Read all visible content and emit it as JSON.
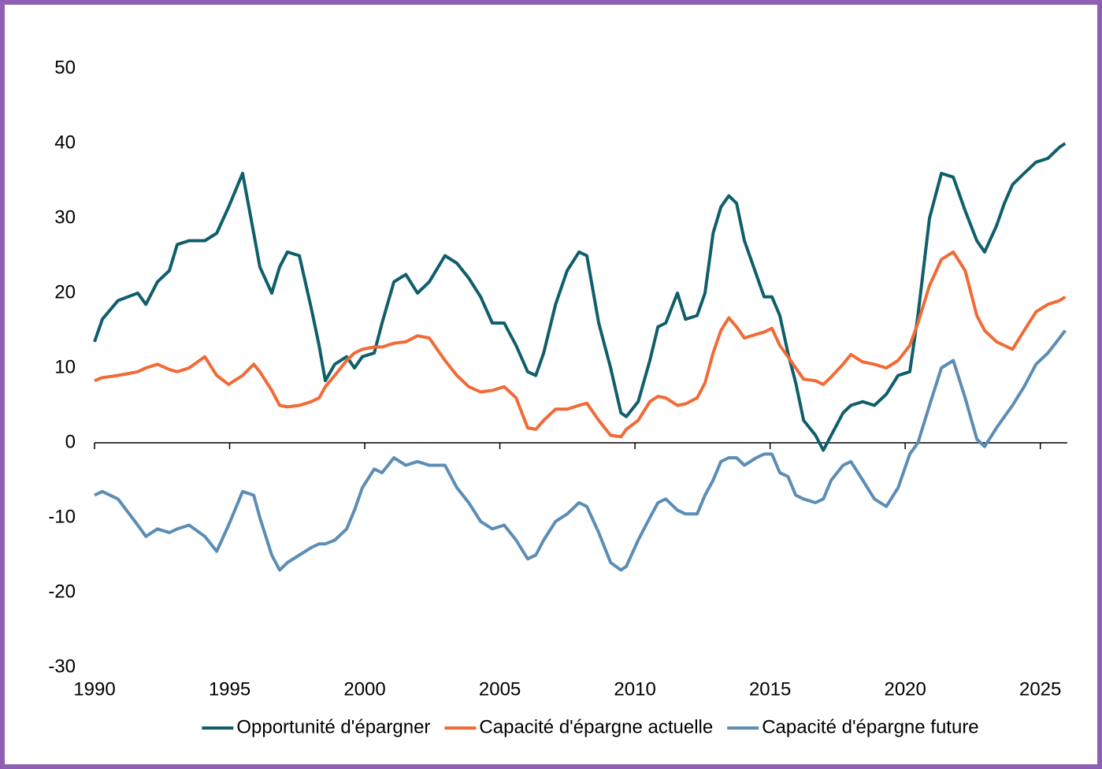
{
  "chart_data": {
    "type": "line",
    "x": [
      1990.0,
      1990.29,
      1990.87,
      1991.6,
      1991.9,
      1992.33,
      1992.77,
      1993.06,
      1993.5,
      1994.08,
      1994.52,
      1994.96,
      1995.48,
      1995.89,
      1996.12,
      1996.56,
      1996.85,
      1997.14,
      1997.58,
      1998.02,
      1998.31,
      1998.54,
      1998.89,
      1999.33,
      1999.62,
      1999.91,
      2000.35,
      2000.64,
      2001.08,
      2001.52,
      2001.95,
      2002.39,
      2002.97,
      2003.41,
      2003.85,
      2004.29,
      2004.72,
      2005.16,
      2005.6,
      2006.03,
      2006.33,
      2006.62,
      2007.06,
      2007.49,
      2007.93,
      2008.22,
      2008.66,
      2009.1,
      2009.48,
      2009.68,
      2010.12,
      2010.55,
      2010.85,
      2011.14,
      2011.57,
      2011.87,
      2012.3,
      2012.59,
      2012.89,
      2013.18,
      2013.47,
      2013.76,
      2014.05,
      2014.49,
      2014.78,
      2015.07,
      2015.36,
      2015.66,
      2015.95,
      2016.24,
      2016.68,
      2016.97,
      2017.26,
      2017.7,
      2017.99,
      2018.43,
      2018.86,
      2019.3,
      2019.74,
      2020.17,
      2020.47,
      2020.9,
      2021.34,
      2021.78,
      2022.22,
      2022.65,
      2022.94,
      2023.38,
      2023.67,
      2023.97,
      2024.4,
      2024.84,
      2025.28,
      2025.71,
      2025.92
    ],
    "series": [
      {
        "name": "Opportunité d'épargner",
        "color": "#0f5f6b",
        "values": [
          13.5,
          16.5,
          19,
          20,
          18.5,
          21.5,
          23,
          26.5,
          27,
          27,
          28,
          31.5,
          36,
          28,
          23.5,
          20,
          23.5,
          25.5,
          25,
          18,
          13,
          8.3,
          10.5,
          11.5,
          10,
          11.5,
          12,
          16,
          21.5,
          22.5,
          20,
          21.5,
          25,
          24,
          22,
          19.5,
          16,
          16,
          13,
          9.5,
          9,
          12,
          18.5,
          23,
          25.5,
          25,
          16,
          10,
          4,
          3.5,
          5.5,
          11,
          15.5,
          16,
          20,
          16.5,
          17,
          20,
          28,
          31.5,
          33,
          32,
          27,
          22.5,
          19.5,
          19.5,
          17,
          12,
          8,
          3,
          1,
          -1,
          1,
          4,
          5,
          5.5,
          5,
          6.5,
          9,
          9.5,
          17,
          30,
          36,
          35.5,
          31,
          27,
          25.5,
          29,
          32,
          34.5,
          36,
          37.5,
          38,
          39.5,
          40
        ]
      },
      {
        "name": "Capacité d'épargne actuelle",
        "color": "#f26a35",
        "values": [
          8.3,
          8.7,
          9,
          9.5,
          10,
          10.5,
          9.8,
          9.5,
          10,
          11.5,
          9,
          7.8,
          9,
          10.5,
          9.5,
          7,
          5,
          4.8,
          5,
          5.5,
          6,
          7.5,
          9,
          11,
          12,
          12.5,
          12.8,
          12.8,
          13.3,
          13.5,
          14.3,
          14,
          11,
          9,
          7.5,
          6.8,
          7,
          7.5,
          6,
          2,
          1.8,
          3,
          4.5,
          4.5,
          5,
          5.3,
          3,
          1,
          0.8,
          1.8,
          3,
          5.5,
          6.2,
          6,
          5,
          5.2,
          6,
          8,
          12,
          15,
          16.7,
          15.5,
          14,
          14.5,
          14.8,
          15.3,
          13,
          11.5,
          10,
          8.5,
          8.3,
          7.8,
          8.8,
          10.5,
          11.8,
          10.8,
          10.5,
          10,
          11,
          13,
          16,
          21,
          24.5,
          25.5,
          23,
          17,
          15,
          13.5,
          13,
          12.5,
          15,
          17.5,
          18.5,
          19,
          19.5
        ]
      },
      {
        "name": "Capacité d'épargne future",
        "color": "#5b8db5",
        "values": [
          -7,
          -6.5,
          -7.5,
          -11,
          -12.5,
          -11.5,
          -12,
          -11.5,
          -11,
          -12.5,
          -14.5,
          -11,
          -6.5,
          -7,
          -10,
          -15,
          -17,
          -16,
          -15,
          -14,
          -13.5,
          -13.5,
          -13,
          -11.5,
          -9,
          -6,
          -3.5,
          -4,
          -2,
          -3,
          -2.5,
          -3,
          -3,
          -6,
          -8,
          -10.5,
          -11.5,
          -11,
          -13,
          -15.5,
          -15,
          -13,
          -10.5,
          -9.5,
          -8,
          -8.5,
          -12,
          -16,
          -17,
          -16.5,
          -13,
          -10,
          -8,
          -7.5,
          -9,
          -9.5,
          -9.5,
          -7,
          -5,
          -2.5,
          -2,
          -2,
          -3,
          -2,
          -1.5,
          -1.5,
          -4,
          -4.5,
          -7,
          -7.5,
          -8,
          -7.5,
          -5,
          -3,
          -2.5,
          -5,
          -7.5,
          -8.5,
          -6,
          -1.5,
          0,
          5,
          10,
          11,
          6,
          0.5,
          -0.5,
          2,
          3.5,
          5,
          7.5,
          10.5,
          12,
          14,
          15
        ]
      }
    ],
    "xlim": [
      1990,
      2026
    ],
    "xticks": [
      1990,
      1995,
      2000,
      2005,
      2010,
      2015,
      2020,
      2025
    ],
    "ylim": [
      -30,
      50
    ],
    "yticks": [
      -30,
      -20,
      -10,
      0,
      10,
      20,
      30,
      40,
      50
    ],
    "grid": false,
    "legend": "bottom"
  }
}
